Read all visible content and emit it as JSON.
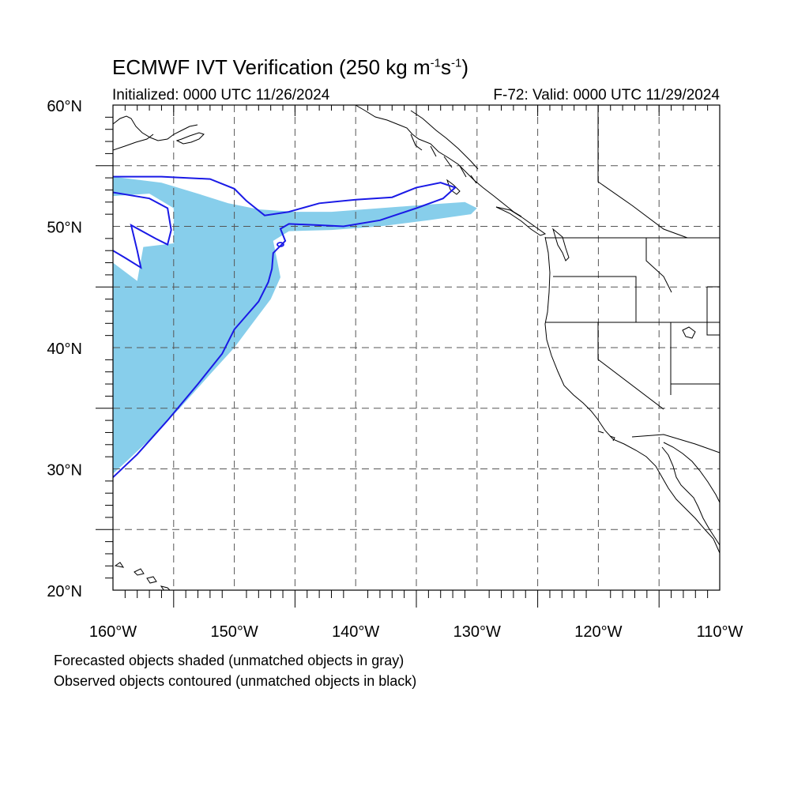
{
  "title": {
    "text": "ECMWF IVT Verification (250 kg m",
    "sup1": "-1",
    "mid": "s",
    "sup2": "-1",
    "end": ")"
  },
  "initialized": "Initialized: 0000 UTC 11/26/2024",
  "valid": "F-72: Valid: 0000 UTC 11/29/2024",
  "notes": {
    "forecast": "Forecasted objects shaded (unmatched objects in gray)",
    "observed": "Observed objects contoured (unmatched objects in black)"
  },
  "map": {
    "lon_range": [
      -160,
      -110
    ],
    "lat_range": [
      20,
      60
    ],
    "lon_ticks": [
      {
        "value": -160,
        "label": "160°W"
      },
      {
        "value": -150,
        "label": "150°W"
      },
      {
        "value": -140,
        "label": "140°W"
      },
      {
        "value": -130,
        "label": "130°W"
      },
      {
        "value": -120,
        "label": "120°W"
      },
      {
        "value": -110,
        "label": "110°W"
      }
    ],
    "lat_ticks": [
      {
        "value": 60,
        "label": "60°N"
      },
      {
        "value": 50,
        "label": "50°N"
      },
      {
        "value": 40,
        "label": "40°N"
      },
      {
        "value": 30,
        "label": "30°N"
      },
      {
        "value": 20,
        "label": "20°N"
      }
    ],
    "grid_lon": [
      -155,
      -150,
      -145,
      -140,
      -135,
      -130,
      -125,
      -120,
      -115
    ],
    "grid_lat": [
      55,
      50,
      45,
      40,
      35,
      30,
      25
    ],
    "colors": {
      "forecast_fill": "#87ceeb",
      "observed_contour": "#1a1ae6",
      "coast": "#000000",
      "grid": "#555555"
    },
    "forecast_object": [
      [
        -160,
        54.1
      ],
      [
        -156,
        53.6
      ],
      [
        -153,
        52.7
      ],
      [
        -150.5,
        51.9
      ],
      [
        -148,
        51.4
      ],
      [
        -145,
        51.2
      ],
      [
        -142,
        51.2
      ],
      [
        -138,
        51.5
      ],
      [
        -134,
        51.8
      ],
      [
        -131,
        52.0
      ],
      [
        -130.0,
        51.5
      ],
      [
        -130.5,
        51.0
      ],
      [
        -134,
        50.5
      ],
      [
        -138,
        50.0
      ],
      [
        -142,
        49.7
      ],
      [
        -145.5,
        49.6
      ],
      [
        -146.8,
        48.8
      ],
      [
        -146.5,
        47.3
      ],
      [
        -146.2,
        45.8
      ],
      [
        -147.0,
        44.0
      ],
      [
        -148.5,
        42.0
      ],
      [
        -150.0,
        40.0
      ],
      [
        -152.0,
        37.8
      ],
      [
        -154.5,
        35.0
      ],
      [
        -156.8,
        32.6
      ],
      [
        -158.8,
        30.7
      ],
      [
        -160,
        29.6
      ],
      [
        -160,
        47.0
      ],
      [
        -158.0,
        45.5
      ],
      [
        -157.5,
        48.3
      ],
      [
        -155.0,
        48.6
      ],
      [
        -155.0,
        51.5
      ],
      [
        -157.0,
        52.7
      ],
      [
        -160,
        52.5
      ]
    ],
    "observed_contour": [
      [
        -160,
        54.1
      ],
      [
        -156,
        54.1
      ],
      [
        -152,
        53.9
      ],
      [
        -150.0,
        53.1
      ],
      [
        -149.0,
        52.1
      ],
      [
        -147.5,
        50.9
      ],
      [
        -145.5,
        51.2
      ],
      [
        -143.0,
        51.9
      ],
      [
        -140.0,
        52.2
      ],
      [
        -137.0,
        52.4
      ],
      [
        -135.0,
        53.2
      ],
      [
        -133.0,
        53.6
      ],
      [
        -131.8,
        53.2
      ],
      [
        -132.8,
        52.3
      ],
      [
        -135.0,
        51.5
      ],
      [
        -138.0,
        50.5
      ],
      [
        -141.0,
        50.0
      ],
      [
        -143.0,
        50.1
      ],
      [
        -145.5,
        50.2
      ],
      [
        -146.2,
        49.8
      ],
      [
        -145.8,
        48.8
      ],
      [
        -146.8,
        47.8
      ],
      [
        -146.9,
        46.5
      ],
      [
        -147.2,
        45.4
      ],
      [
        -148.0,
        43.8
      ],
      [
        -150.0,
        41.5
      ],
      [
        -151.0,
        39.5
      ],
      [
        -153.0,
        37.0
      ],
      [
        -155.5,
        34.0
      ],
      [
        -158.0,
        31.2
      ],
      [
        -160,
        29.3
      ]
    ],
    "observed_contour_inner": [
      [
        -160,
        52.8
      ],
      [
        -157.0,
        52.3
      ],
      [
        -155.5,
        51.5
      ],
      [
        -155.2,
        49.7
      ],
      [
        -155.5,
        48.5
      ],
      [
        -156.5,
        49.0
      ],
      [
        -158.5,
        50.1
      ],
      [
        -158.0,
        48.0
      ],
      [
        -157.7,
        46.6
      ],
      [
        -159.0,
        47.4
      ],
      [
        -160,
        48.0
      ]
    ]
  }
}
